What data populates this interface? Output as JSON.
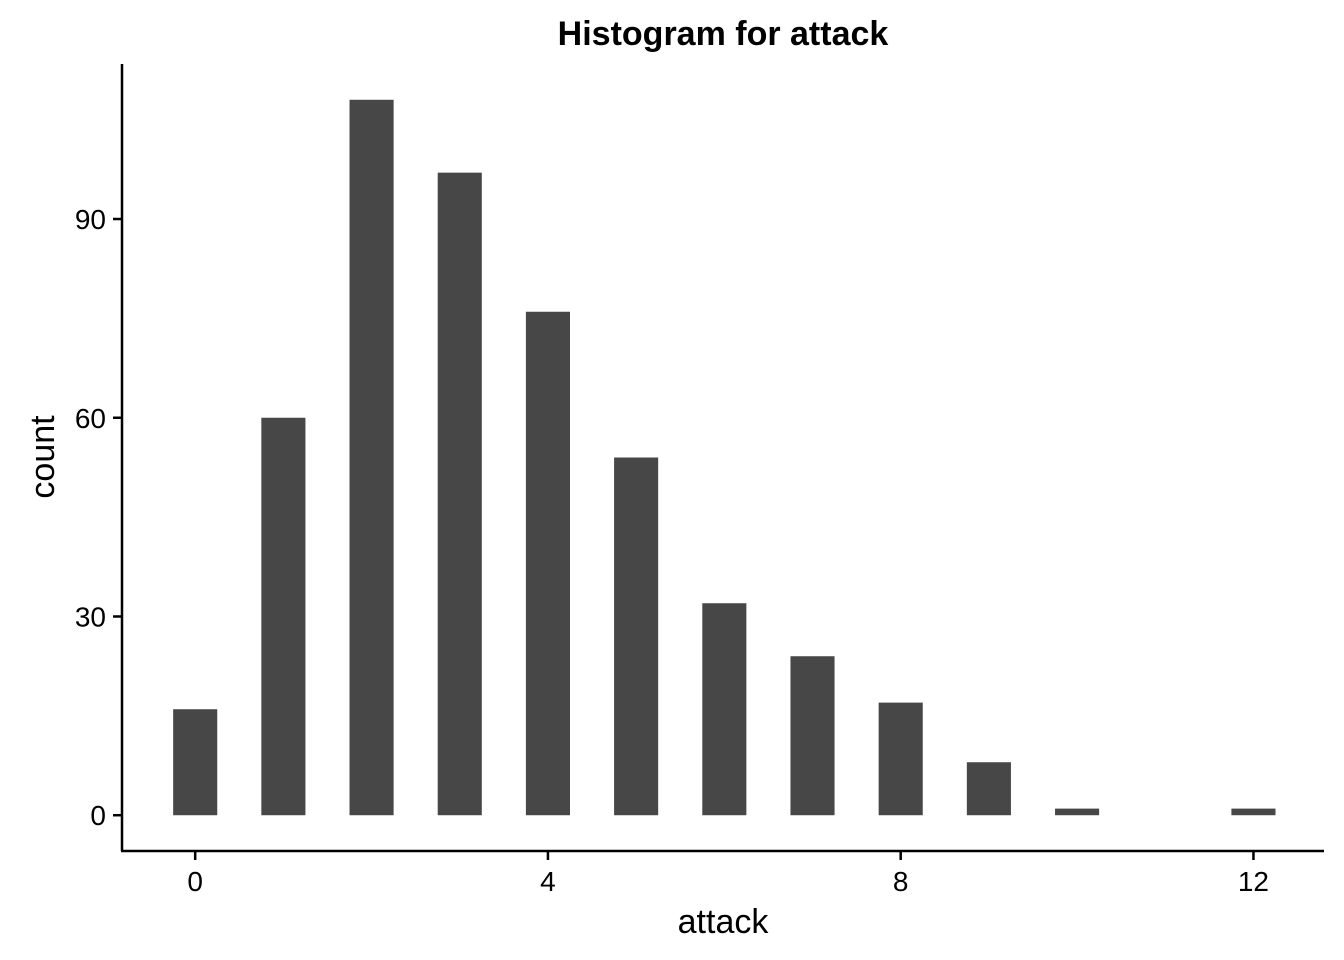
{
  "chart_data": {
    "type": "bar",
    "title": "Histogram for attack",
    "xlabel": "attack",
    "ylabel": "count",
    "x": [
      0,
      1,
      2,
      3,
      4,
      5,
      6,
      7,
      8,
      9,
      10,
      11,
      12
    ],
    "values": [
      16,
      60,
      108,
      97,
      76,
      54,
      32,
      24,
      17,
      8,
      1,
      0,
      1
    ],
    "xticks": [
      0,
      4,
      8,
      12
    ],
    "yticks": [
      0,
      30,
      60,
      90
    ],
    "xlim": [
      -0.83,
      12.8
    ],
    "ylim": [
      -5.4,
      113.4
    ],
    "bar_color": "#474747",
    "grid": false
  }
}
